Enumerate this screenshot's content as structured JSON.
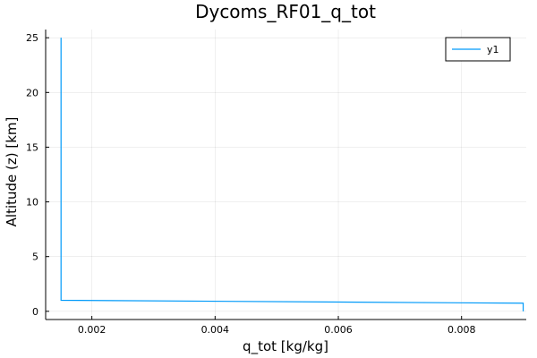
{
  "chart_data": {
    "type": "line",
    "title": "Dycoms_RF01_q_tot",
    "xlabel": "q_tot [kg/kg]",
    "ylabel": "Altitude (z) [km]",
    "xlim": [
      0.00125,
      0.00905
    ],
    "ylim": [
      -0.75,
      25.75
    ],
    "xticks": [
      0.002,
      0.004,
      0.006,
      0.008
    ],
    "xtick_labels": [
      "0.002",
      "0.004",
      "0.006",
      "0.008"
    ],
    "yticks": [
      0,
      5,
      10,
      15,
      20,
      25
    ],
    "ytick_labels": [
      "0",
      "5",
      "10",
      "15",
      "20",
      "25"
    ],
    "grid": true,
    "legend": {
      "position": "top-right",
      "entries": [
        "y1"
      ]
    },
    "series": [
      {
        "name": "y1",
        "color": "#009af9",
        "x": [
          0.009,
          0.009,
          0.0015,
          0.0015
        ],
        "y": [
          0.0,
          0.74,
          1.01,
          25.0
        ]
      }
    ]
  }
}
